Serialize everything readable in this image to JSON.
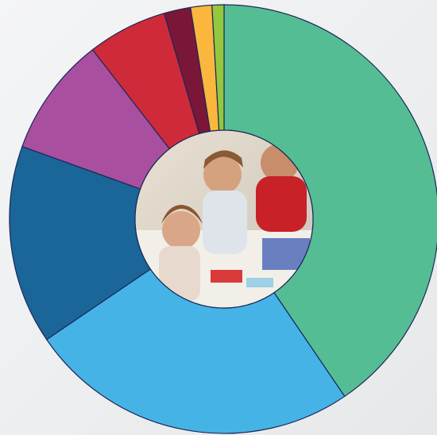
{
  "chart_data": {
    "type": "donut",
    "values": [
      40.5,
      25,
      15,
      9,
      6,
      2,
      1.6,
      0.9
    ],
    "colors": [
      "#55bd94",
      "#45b3e6",
      "#1a6699",
      "#a94fa0",
      "#cf2a3a",
      "#7a1638",
      "#fbb73d",
      "#93c83e"
    ]
  }
}
